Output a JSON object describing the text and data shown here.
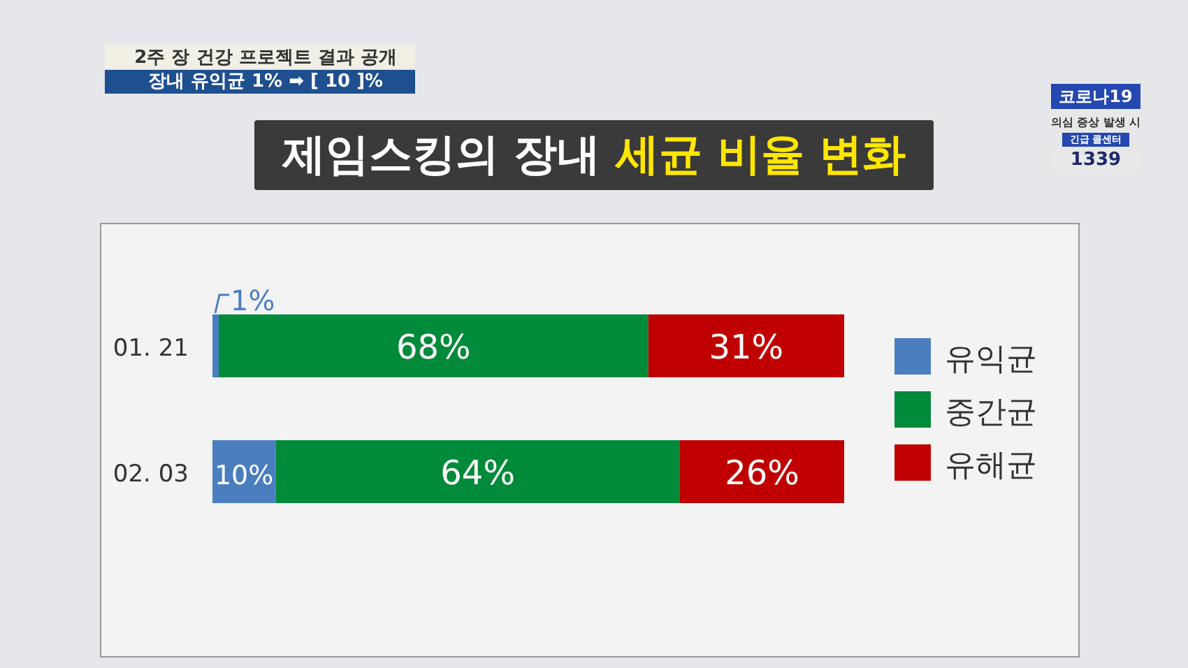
{
  "chart_data": {
    "type": "bar",
    "orientation": "horizontal",
    "stacked": true,
    "relative": false,
    "title": "제임스킹의 장내 세균 비율 변화",
    "categories": [
      "01. 21",
      "02. 03"
    ],
    "series": [
      {
        "name": "유익균",
        "color": "#4a7ebf",
        "values": [
          1,
          10
        ],
        "value_labels": [
          "1%",
          "10%"
        ]
      },
      {
        "name": "중간균",
        "color": "#008a3a",
        "values": [
          68,
          64
        ],
        "value_labels": [
          "68%",
          "64%"
        ]
      },
      {
        "name": "유해균",
        "color": "#c00000",
        "values": [
          31,
          26
        ],
        "value_labels": [
          "31%",
          "26%"
        ]
      }
    ],
    "legend": "right",
    "annotations": [
      "2주 장 건강 프로젝트 결과 공개",
      "장내 유익균 1% ➡ [ 10 ]%",
      "코로나19",
      "의심 증상 발생 시",
      "긴급 콜센터",
      "1339"
    ]
  }
}
